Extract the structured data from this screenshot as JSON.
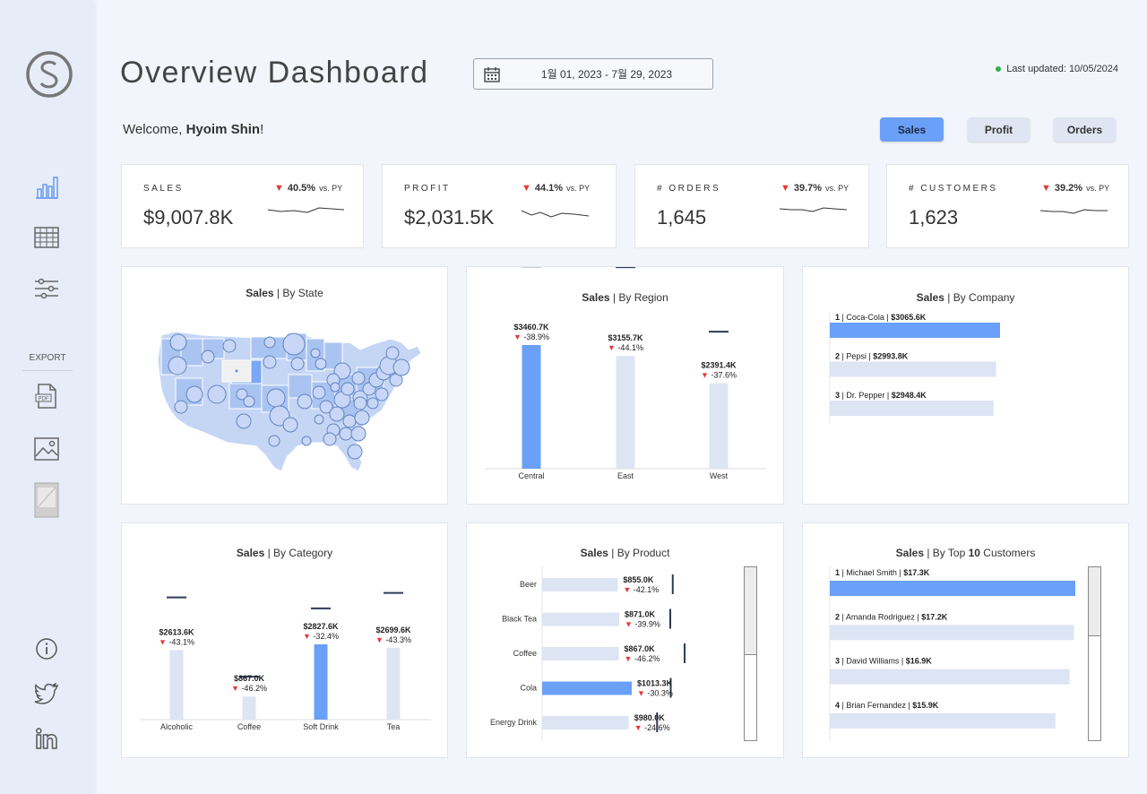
{
  "header": {
    "title": "Overview Dashboard",
    "date_range": "1월 01, 2023 - 7월 29, 2023",
    "last_updated": "Last updated: 10/05/2024",
    "welcome_prefix": "Welcome, ",
    "user_name": "Hyoim Shin",
    "welcome_suffix": "!"
  },
  "sidebar": {
    "export_label": "EXPORT"
  },
  "toggles": [
    {
      "label": "Sales",
      "active": true
    },
    {
      "label": "Profit",
      "active": false
    },
    {
      "label": "Orders",
      "active": false
    }
  ],
  "kpis": [
    {
      "label": "SALES",
      "value": "$9,007.8K",
      "delta": "40.5%",
      "vs": "vs. PY"
    },
    {
      "label": "PROFIT",
      "value": "$2,031.5K",
      "delta": "44.1%",
      "vs": "vs. PY"
    },
    {
      "label": "# ORDERS",
      "value": "1,645",
      "delta": "39.7%",
      "vs": "vs. PY"
    },
    {
      "label": "# CUSTOMERS",
      "value": "1,623",
      "delta": "39.2%",
      "vs": "vs. PY"
    }
  ],
  "panels": {
    "state": {
      "title_bold": "Sales",
      "title_rest": " | By State"
    },
    "region": {
      "title_bold": "Sales",
      "title_rest": " | By Region"
    },
    "company": {
      "title_bold": "Sales",
      "title_rest": " | By Company"
    },
    "category": {
      "title_bold": "Sales",
      "title_rest": " | By Category"
    },
    "product": {
      "title_bold": "Sales",
      "title_rest": " | By Product"
    },
    "customers": {
      "title_bold": "Sales",
      "title_mid": " | By Top ",
      "title_num": "10",
      "title_rest": " Customers"
    }
  },
  "chart_data": [
    {
      "id": "region",
      "type": "bar",
      "title": "Sales | By Region",
      "categories": [
        "Central",
        "East",
        "West"
      ],
      "values": [
        3460.7,
        3155.7,
        2391.4
      ],
      "value_labels": [
        "$3460.7K",
        "$3155.7K",
        "$2391.4K"
      ],
      "deltas": [
        "-38.9%",
        "-44.1%",
        "-37.6%"
      ],
      "py_values": [
        5660,
        5640,
        3835
      ],
      "highlight": "Central",
      "ylim": [
        0,
        6500
      ]
    },
    {
      "id": "company",
      "type": "bar",
      "orientation": "horizontal",
      "title": "Sales | By Company",
      "categories": [
        "Coca-Cola",
        "Pepsi",
        "Dr. Pepper"
      ],
      "ranks": [
        "1",
        "2",
        "3"
      ],
      "values": [
        3065.6,
        2993.8,
        2948.4
      ],
      "value_labels": [
        "$3065.6K",
        "$2993.8K",
        "$2948.4K"
      ],
      "highlight": "Coca-Cola",
      "xlim": [
        0,
        5000
      ]
    },
    {
      "id": "category",
      "type": "bar",
      "title": "Sales | By Category",
      "categories": [
        "Alcoholic",
        "Coffee",
        "Soft Drink",
        "Tea"
      ],
      "values": [
        2613.6,
        867.0,
        2827.6,
        2699.6
      ],
      "value_labels": [
        "$2613.6K",
        "$867.0K",
        "$2827.6K",
        "$2699.6K"
      ],
      "deltas": [
        "-43.1%",
        "-46.2%",
        "-32.4%",
        "-43.3%"
      ],
      "py_values": [
        4590,
        1612,
        4180,
        4760
      ],
      "highlight": "Soft Drink",
      "ylim": [
        0,
        6200
      ]
    },
    {
      "id": "product",
      "type": "bar",
      "orientation": "horizontal",
      "title": "Sales | By Product",
      "categories": [
        "Beer",
        "Black Tea",
        "Coffee",
        "Cola",
        "Energy Drink"
      ],
      "values": [
        855.0,
        871.0,
        867.0,
        1013.3,
        980.0
      ],
      "value_labels": [
        "$855.0K",
        "$871.0K",
        "$867.0K",
        "$1013.3K",
        "$980.0K"
      ],
      "deltas": [
        "-42.1%",
        "-39.9%",
        "-46.2%",
        "-30.3%",
        "-24.6%"
      ],
      "py_values": [
        1477,
        1449,
        1611,
        1454,
        1300
      ],
      "highlight": "Cola",
      "xlim": [
        0,
        1850
      ]
    },
    {
      "id": "customers",
      "type": "bar",
      "orientation": "horizontal",
      "title": "Sales | By Top 10 Customers",
      "categories": [
        "Michael Smith",
        "Amanda Rodriguez",
        "David Williams",
        "Brian Fernandez"
      ],
      "ranks": [
        "1",
        "2",
        "3",
        "4"
      ],
      "values": [
        17.3,
        17.2,
        16.9,
        15.9
      ],
      "value_labels": [
        "$17.3K",
        "$17.2K",
        "$16.9K",
        "$15.9K"
      ],
      "highlight": "Michael Smith",
      "xlim": [
        0,
        17.3
      ]
    }
  ]
}
